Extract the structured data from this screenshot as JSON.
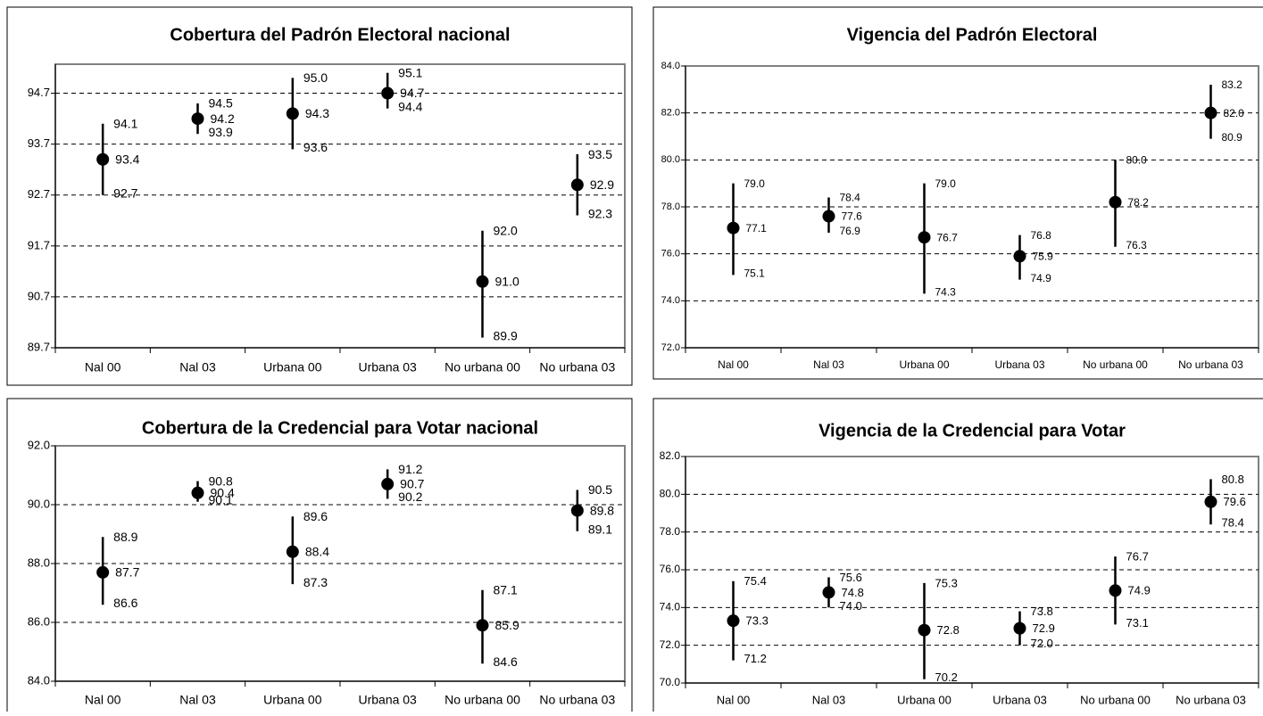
{
  "chart_data": [
    {
      "type": "errorbar",
      "title": "Cobertura del Padrón Electoral nacional",
      "categories": [
        "Nal 00",
        "Nal 03",
        "Urbana 00",
        "Urbana 03",
        "No urbana 00",
        "No urbana 03"
      ],
      "values": [
        93.4,
        94.2,
        94.3,
        94.7,
        91.0,
        92.9
      ],
      "value_labels": [
        "93.4",
        "94.2",
        "94.3",
        "94.7",
        "91.0",
        "92.9"
      ],
      "low": [
        92.7,
        93.9,
        93.6,
        94.4,
        89.9,
        92.3
      ],
      "low_labels": [
        "92.7",
        "93.9",
        "93.6",
        "94.4",
        "89.9",
        "92.3"
      ],
      "high": [
        94.1,
        94.5,
        95.0,
        95.1,
        92.0,
        93.5
      ],
      "high_labels": [
        "94.1",
        "94.5",
        "95.0",
        "95.1",
        "92.0",
        "93.5"
      ],
      "ylim": [
        89.7,
        95.27
      ],
      "yticks": [
        89.7,
        90.7,
        91.7,
        92.7,
        93.7,
        94.7
      ],
      "grid": true,
      "color": "#000000"
    },
    {
      "type": "errorbar",
      "title": "Vigencia del Padrón Electoral",
      "categories": [
        "Nal 00",
        "Nal 03",
        "Urbana 00",
        "Urbana 03",
        "No urbana 00",
        "No urbana 03"
      ],
      "values": [
        77.1,
        77.6,
        76.7,
        75.9,
        78.2,
        82.0
      ],
      "value_labels": [
        "77.1",
        "77.6",
        "76.7",
        "75.9",
        "78.2",
        "82.0"
      ],
      "low": [
        75.1,
        76.9,
        74.3,
        74.9,
        76.3,
        80.9
      ],
      "low_labels": [
        "75.1",
        "76.9",
        "74.3",
        "74.9",
        "76.3",
        "80.9"
      ],
      "high": [
        79.0,
        78.4,
        79.0,
        76.8,
        80.0,
        83.2
      ],
      "high_labels": [
        "79.0",
        "78.4",
        "79.0",
        "76.8",
        "80.0",
        "83.2"
      ],
      "ylim": [
        72,
        84
      ],
      "yticks": [
        {
          "value": 72,
          "label": "72.0"
        },
        {
          "value": 74,
          "label": "74.0"
        },
        {
          "value": 76,
          "label": "76.0"
        },
        {
          "value": 78,
          "label": "78.0"
        },
        {
          "value": 80,
          "label": "80.0"
        },
        {
          "value": 82,
          "label": "82.0"
        },
        {
          "value": 84,
          "label": "84.0"
        }
      ],
      "grid": true,
      "color": "#000000"
    },
    {
      "type": "errorbar",
      "title": "Cobertura de la Credencial para Votar nacional",
      "categories": [
        "Nal 00",
        "Nal 03",
        "Urbana 00",
        "Urbana 03",
        "No urbana 00",
        "No urbana 03"
      ],
      "values": [
        87.7,
        90.4,
        88.4,
        90.7,
        85.9,
        89.8
      ],
      "low": [
        86.6,
        90.1,
        87.3,
        90.2,
        84.6,
        89.1
      ],
      "high": [
        88.9,
        90.8,
        89.6,
        91.2,
        87.1,
        90.5
      ],
      "ylim": [
        84,
        92
      ],
      "yticks": [
        {
          "value": 84,
          "label": "84.0"
        },
        {
          "value": 86,
          "label": "86.0"
        },
        {
          "value": 88,
          "label": "88.0"
        },
        {
          "value": 90,
          "label": "90.0"
        },
        {
          "value": 92,
          "label": "92.0"
        }
      ],
      "grid": true,
      "color": "#000000"
    },
    {
      "type": "errorbar",
      "title": "Vigencia de la Credencial para Votar",
      "categories": [
        "Nal 00",
        "Nal 03",
        "Urbana 00",
        "Urbana 03",
        "No urbana 00",
        "No urbana 03"
      ],
      "values": [
        73.3,
        74.8,
        72.8,
        72.9,
        74.9,
        79.6
      ],
      "value_labels": [
        "73.3",
        "74.8",
        "72.8",
        "72.9",
        "74.9",
        "79.6"
      ],
      "low": [
        71.2,
        74.0,
        70.2,
        72.0,
        73.1,
        78.4
      ],
      "low_labels": [
        "71.2",
        "74.0",
        "70.2",
        "72.0",
        "73.1",
        "78.4"
      ],
      "high": [
        75.4,
        75.6,
        75.3,
        73.8,
        76.7,
        80.8
      ],
      "high_labels": [
        "75.4",
        "75.6",
        "75.3",
        "73.8",
        "76.7",
        "80.8"
      ],
      "ylim": [
        70,
        82
      ],
      "yticks": [
        {
          "value": 70,
          "label": "70.0"
        },
        {
          "value": 72,
          "label": "72.0"
        },
        {
          "value": 74,
          "label": "74.0"
        },
        {
          "value": 76,
          "label": "76.0"
        },
        {
          "value": 78,
          "label": "78.0"
        },
        {
          "value": 80,
          "label": "80.0"
        },
        {
          "value": 82,
          "label": "82.0"
        }
      ],
      "grid": true,
      "color": "#000000"
    }
  ]
}
